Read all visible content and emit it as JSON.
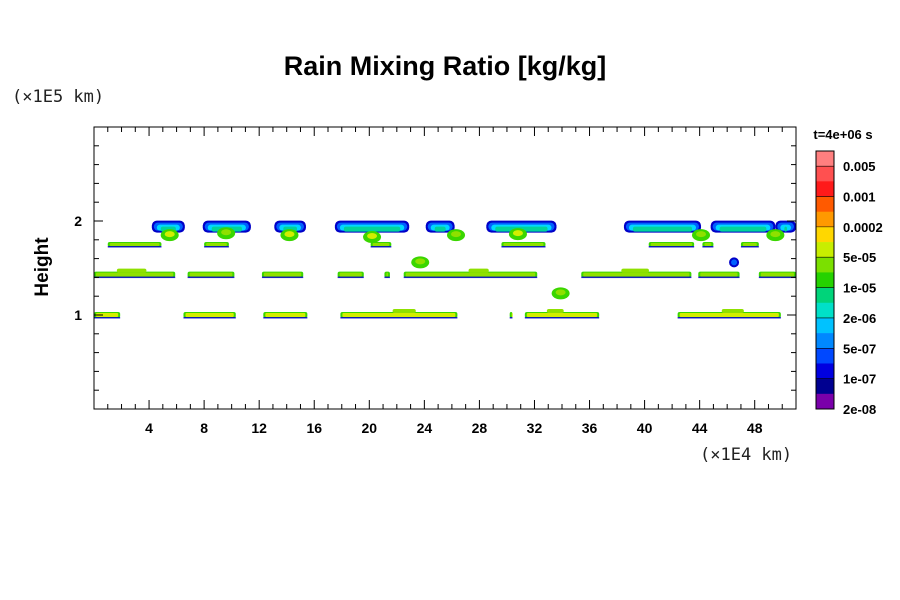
{
  "chart_data": {
    "type": "heatmap",
    "title": "Rain Mixing Ratio [kg/kg]",
    "ylabel": "Height",
    "xlabel": "",
    "x_unit": "(×1E4 km)",
    "y_unit": "(×1E5 km)",
    "time_label": "t=4e+06 s",
    "xlim": [
      0,
      51
    ],
    "ylim": [
      0,
      3
    ],
    "x_ticks": [
      4,
      8,
      12,
      16,
      20,
      24,
      28,
      32,
      36,
      40,
      44,
      48
    ],
    "y_ticks": [
      1,
      2
    ],
    "colorbar": {
      "labels": [
        "0.005",
        "0.001",
        "0.0002",
        "5e-05",
        "1e-05",
        "2e-06",
        "5e-07",
        "1e-07",
        "2e-08"
      ],
      "colors": [
        "#ff7f7f",
        "#ff5050",
        "#ff1a1a",
        "#ff5a00",
        "#ff9900",
        "#ffd700",
        "#c8ee00",
        "#7be000",
        "#25d200",
        "#00d47a",
        "#00e0c8",
        "#00c2ff",
        "#0088ff",
        "#0048ff",
        "#0000e0",
        "#000090",
        "#7a00aa"
      ]
    },
    "layers": [
      {
        "height": 1.0,
        "segments": [
          [
            0,
            1.9
          ],
          [
            6.5,
            10.3
          ],
          [
            12.3,
            15.5
          ],
          [
            17.9,
            26.4
          ],
          [
            30.2,
            30.4
          ],
          [
            31.3,
            36.7
          ],
          [
            42.4,
            49.9
          ]
        ]
      },
      {
        "height": 1.43,
        "segments": [
          [
            0,
            5.9
          ],
          [
            6.8,
            10.2
          ],
          [
            12.2,
            15.2
          ],
          [
            17.7,
            19.6
          ],
          [
            21.1,
            21.5
          ],
          [
            22.5,
            32.2
          ],
          [
            35.4,
            43.4
          ],
          [
            43.9,
            46.9
          ],
          [
            48.3,
            51
          ]
        ]
      },
      {
        "height": 1.75,
        "segments": [
          [
            1,
            4.9
          ],
          [
            8,
            9.8
          ],
          [
            20.1,
            21.6
          ],
          [
            29.6,
            32.8
          ],
          [
            40.3,
            43.6
          ],
          [
            44.2,
            45
          ],
          [
            47,
            48.3
          ]
        ]
      },
      {
        "height": 1.94,
        "segments": [
          [
            4.2,
            6.6
          ],
          [
            7.9,
            11.4
          ],
          [
            13.1,
            15.4
          ],
          [
            17.5,
            22.9
          ],
          [
            24.1,
            26.2
          ],
          [
            28.5,
            33.6
          ],
          [
            38.5,
            44.1
          ],
          [
            44.8,
            49.5
          ],
          [
            49.5,
            51
          ]
        ]
      }
    ],
    "blobs": [
      {
        "x": 5.5,
        "y": 1.85,
        "level": 0.7
      },
      {
        "x": 9.6,
        "y": 1.87,
        "level": 0.6
      },
      {
        "x": 14.2,
        "y": 1.85,
        "level": 0.65
      },
      {
        "x": 20.2,
        "y": 1.83,
        "level": 0.7
      },
      {
        "x": 23.7,
        "y": 1.56,
        "level": 0.5
      },
      {
        "x": 26.3,
        "y": 1.85,
        "level": 0.5
      },
      {
        "x": 30.8,
        "y": 1.86,
        "level": 0.65
      },
      {
        "x": 33.9,
        "y": 1.23,
        "level": 0.6
      },
      {
        "x": 44.1,
        "y": 1.85,
        "level": 0.6
      },
      {
        "x": 46.5,
        "y": 1.56,
        "level": 0.2
      },
      {
        "x": 49.5,
        "y": 1.85,
        "level": 0.6
      }
    ]
  }
}
